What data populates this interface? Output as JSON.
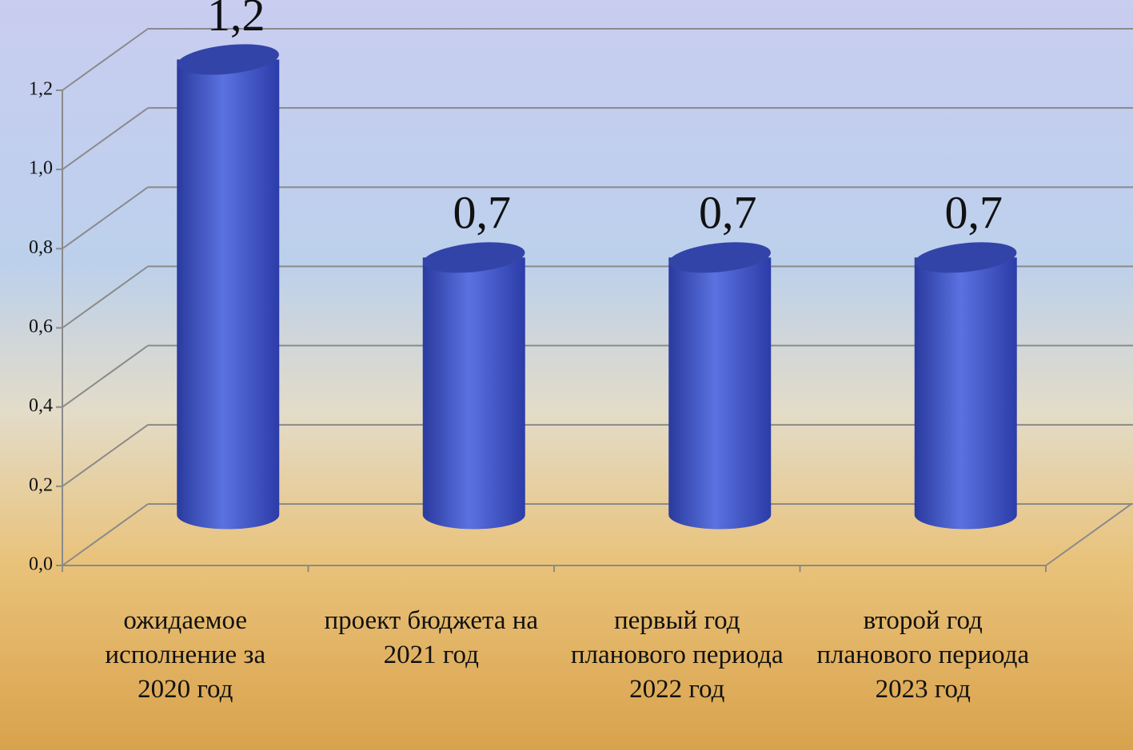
{
  "chart_data": {
    "type": "bar3d",
    "categories": [
      "ожидаемое исполнение за 2020 год",
      "проект бюджета на 2021 год",
      "первый год планового периода 2022 год",
      "второй год планового периода 2023 год"
    ],
    "values": [
      1.2,
      0.7,
      0.7,
      0.7
    ],
    "value_labels": [
      "1,2",
      "0,7",
      "0,7",
      "0,7"
    ],
    "color": "#3f55c8",
    "ylim": [
      0,
      1.2
    ],
    "yticks": [
      {
        "value": 0,
        "label": "0,0"
      },
      {
        "value": 0.2,
        "label": "0,2"
      },
      {
        "value": 0.4,
        "label": "0,4"
      },
      {
        "value": 0.6,
        "label": "0,6"
      },
      {
        "value": 0.8,
        "label": "0,8"
      },
      {
        "value": 1.0,
        "label": "1,0"
      },
      {
        "value": 1.2,
        "label": "1,2"
      }
    ],
    "grid": true
  }
}
